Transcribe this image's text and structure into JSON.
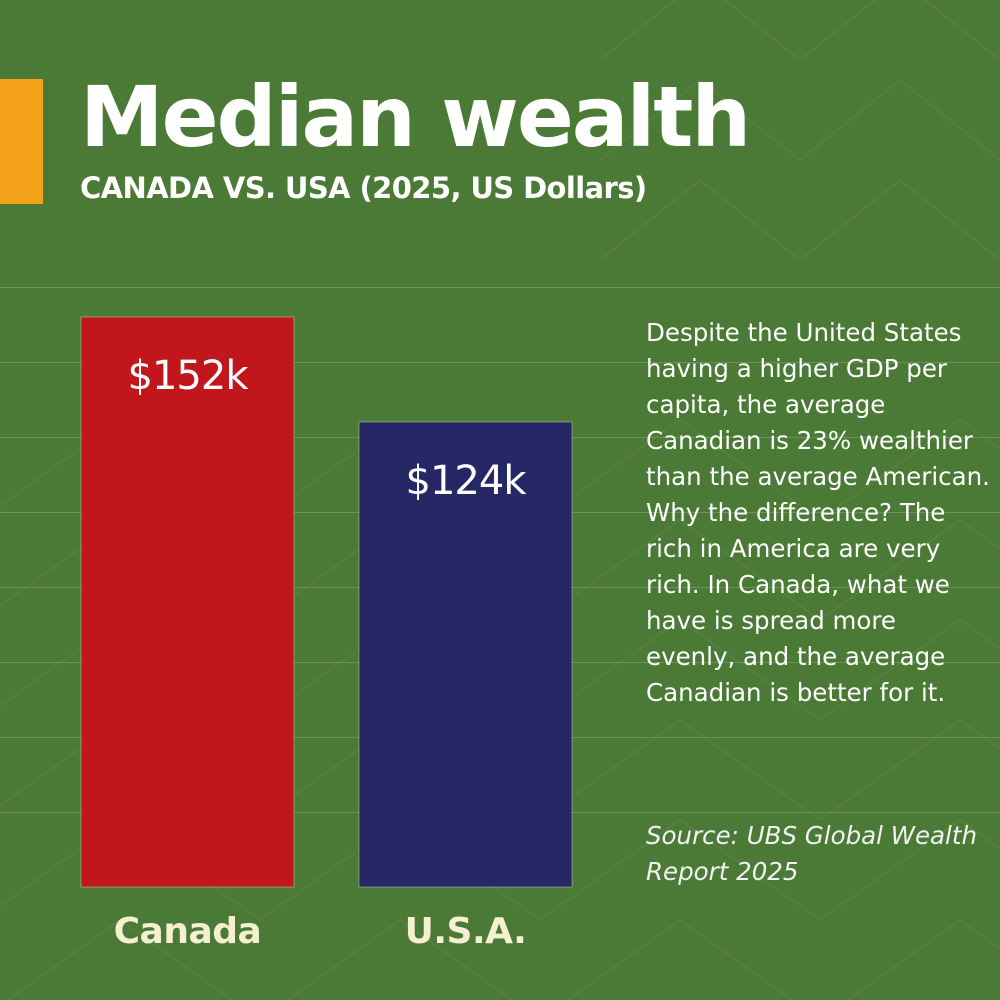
{
  "title": "Median wealth",
  "subtitle": "CANADA VS. USA (2025, US Dollars)",
  "description": "Despite the United States having a higher GDP per capita, the average Canadian is 23% wealthier than the average American. Why the difference? The rich in America are very rich. In Canada, what we have is spread more evenly, and the average Canadian is better for it.",
  "source": "Source: UBS Global Wealth Report 2025",
  "colors": {
    "background": "#4a7a35",
    "accent": "#f5a21b",
    "canada": "#c0161c",
    "usa": "#262866",
    "text": "#ffffff",
    "category_label": "#f5f0d0"
  },
  "chart_data": {
    "type": "bar",
    "title": "Median wealth",
    "subtitle": "CANADA VS. USA (2025, US Dollars)",
    "categories": [
      "Canada",
      "U.S.A."
    ],
    "values": [
      152,
      124
    ],
    "data_labels": [
      "$152k",
      "$124k"
    ],
    "bar_colors": [
      "#c0161c",
      "#262866"
    ],
    "xlabel": "",
    "ylabel": "",
    "ylim": [
      0,
      152
    ],
    "grid": true,
    "legend": "none"
  }
}
